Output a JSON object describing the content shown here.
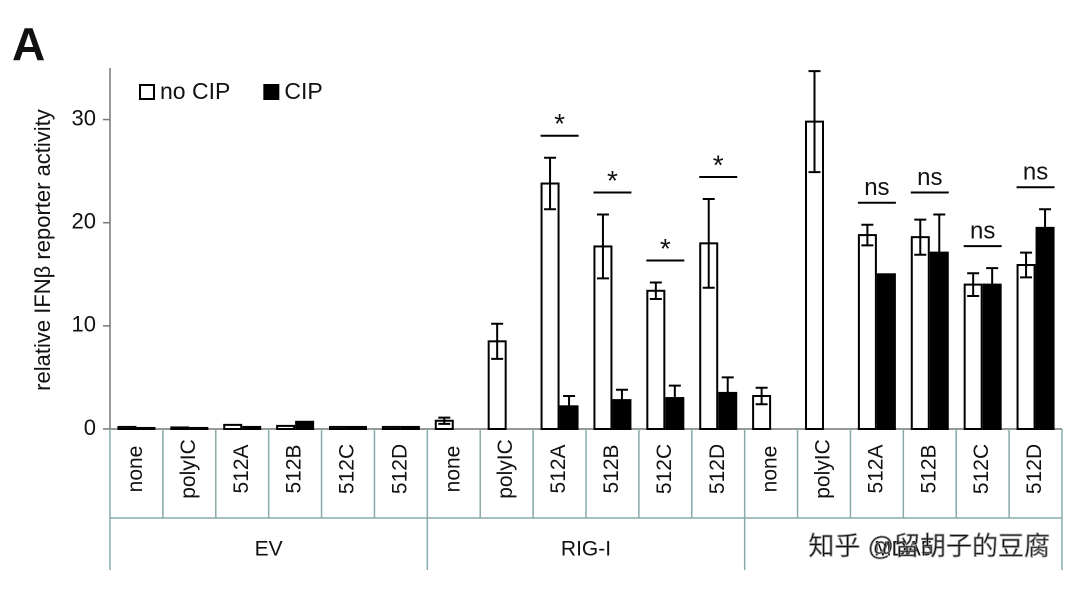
{
  "chart_data": {
    "type": "bar",
    "panel_label": "A",
    "y_label": "relative IFNβ reporter activity",
    "groups": [
      {
        "label": "EV",
        "categories": [
          "none",
          "polyIC",
          "512A",
          "512B",
          "512C",
          "512D"
        ]
      },
      {
        "label": "RIG-I",
        "categories": [
          "none",
          "polyIC",
          "512A",
          "512B",
          "512C",
          "512D"
        ]
      },
      {
        "label": "MDA5",
        "categories": [
          "none",
          "polyIC",
          "512A",
          "512B",
          "512C",
          "512D"
        ]
      }
    ],
    "series": [
      {
        "name": "no CIP",
        "color": "#ffffff",
        "values": [
          0.2,
          0.15,
          0.4,
          0.3,
          0.2,
          0.2,
          0.8,
          8.5,
          23.8,
          17.7,
          13.4,
          18.0,
          3.2,
          29.8,
          18.8,
          18.6,
          14.0,
          15.9
        ],
        "errors": [
          0,
          0,
          0,
          0,
          0,
          0,
          0.3,
          1.7,
          2.5,
          3.1,
          0.8,
          4.3,
          0.8,
          4.9,
          1.0,
          1.7,
          1.1,
          1.2
        ]
      },
      {
        "name": "CIP",
        "color": "#000000",
        "values": [
          0.1,
          0.1,
          0.2,
          0.7,
          0.2,
          0.2,
          null,
          null,
          2.2,
          2.8,
          3.0,
          3.5,
          null,
          null,
          15.0,
          17.1,
          14.0,
          19.5
        ],
        "errors": [
          0,
          0,
          0,
          0,
          0,
          0,
          null,
          null,
          1.0,
          1.0,
          1.2,
          1.5,
          null,
          null,
          0,
          3.7,
          1.6,
          1.8
        ]
      }
    ],
    "significance": [
      null,
      null,
      null,
      null,
      null,
      null,
      null,
      null,
      "*",
      "*",
      "*",
      "*",
      null,
      null,
      "ns",
      "ns",
      "ns",
      "ns"
    ],
    "ylim": [
      0,
      35
    ],
    "yticks": [
      0,
      10,
      20,
      30
    ],
    "legend": "top-left",
    "watermark": "知乎 @留胡子的豆腐"
  }
}
